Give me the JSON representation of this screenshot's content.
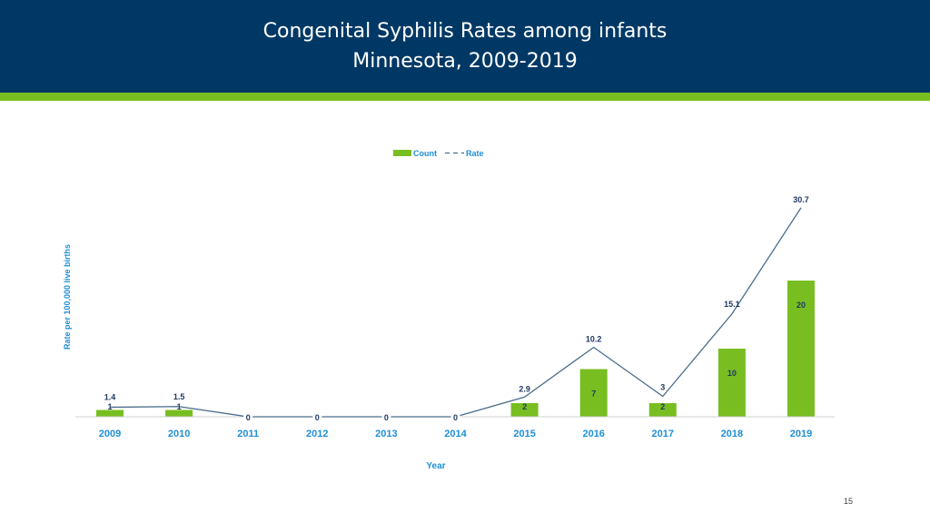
{
  "header": {
    "title_line1": "Congenital Syphilis Rates among infants",
    "title_line2": "Minnesota, 2009-2019",
    "background_color": "#003865",
    "stripe_color": "#78be21"
  },
  "page_number": "15",
  "chart_data": {
    "type": "bar",
    "categories": [
      "2009",
      "2010",
      "2011",
      "2012",
      "2013",
      "2014",
      "2015",
      "2016",
      "2017",
      "2018",
      "2019"
    ],
    "series": [
      {
        "name": "Count",
        "type": "bar",
        "color": "#78be21",
        "values": [
          1,
          1,
          0,
          0,
          0,
          0,
          2,
          7,
          2,
          10,
          20
        ],
        "labels": [
          "1",
          "1",
          "0",
          "0",
          "0",
          "0",
          "2",
          "7",
          "2",
          "10",
          "20"
        ]
      },
      {
        "name": "Rate",
        "type": "line",
        "color": "#4a6d8c",
        "values": [
          1.4,
          1.5,
          0,
          0,
          0,
          0,
          2.9,
          10.2,
          3,
          15.1,
          30.7
        ],
        "labels": [
          "1.4",
          "1.5",
          "",
          "",
          "",
          "",
          "2.9",
          "10.2",
          "3",
          "15.1",
          "30.7"
        ]
      }
    ],
    "xlabel": "Year",
    "ylabel": "Rate per 100,000 live births",
    "legend_position": "top-center",
    "grid": false,
    "label_color": "#1f3864",
    "axis_label_color": "#1f8fd6",
    "tick_label_color": "#1f8fd6"
  }
}
